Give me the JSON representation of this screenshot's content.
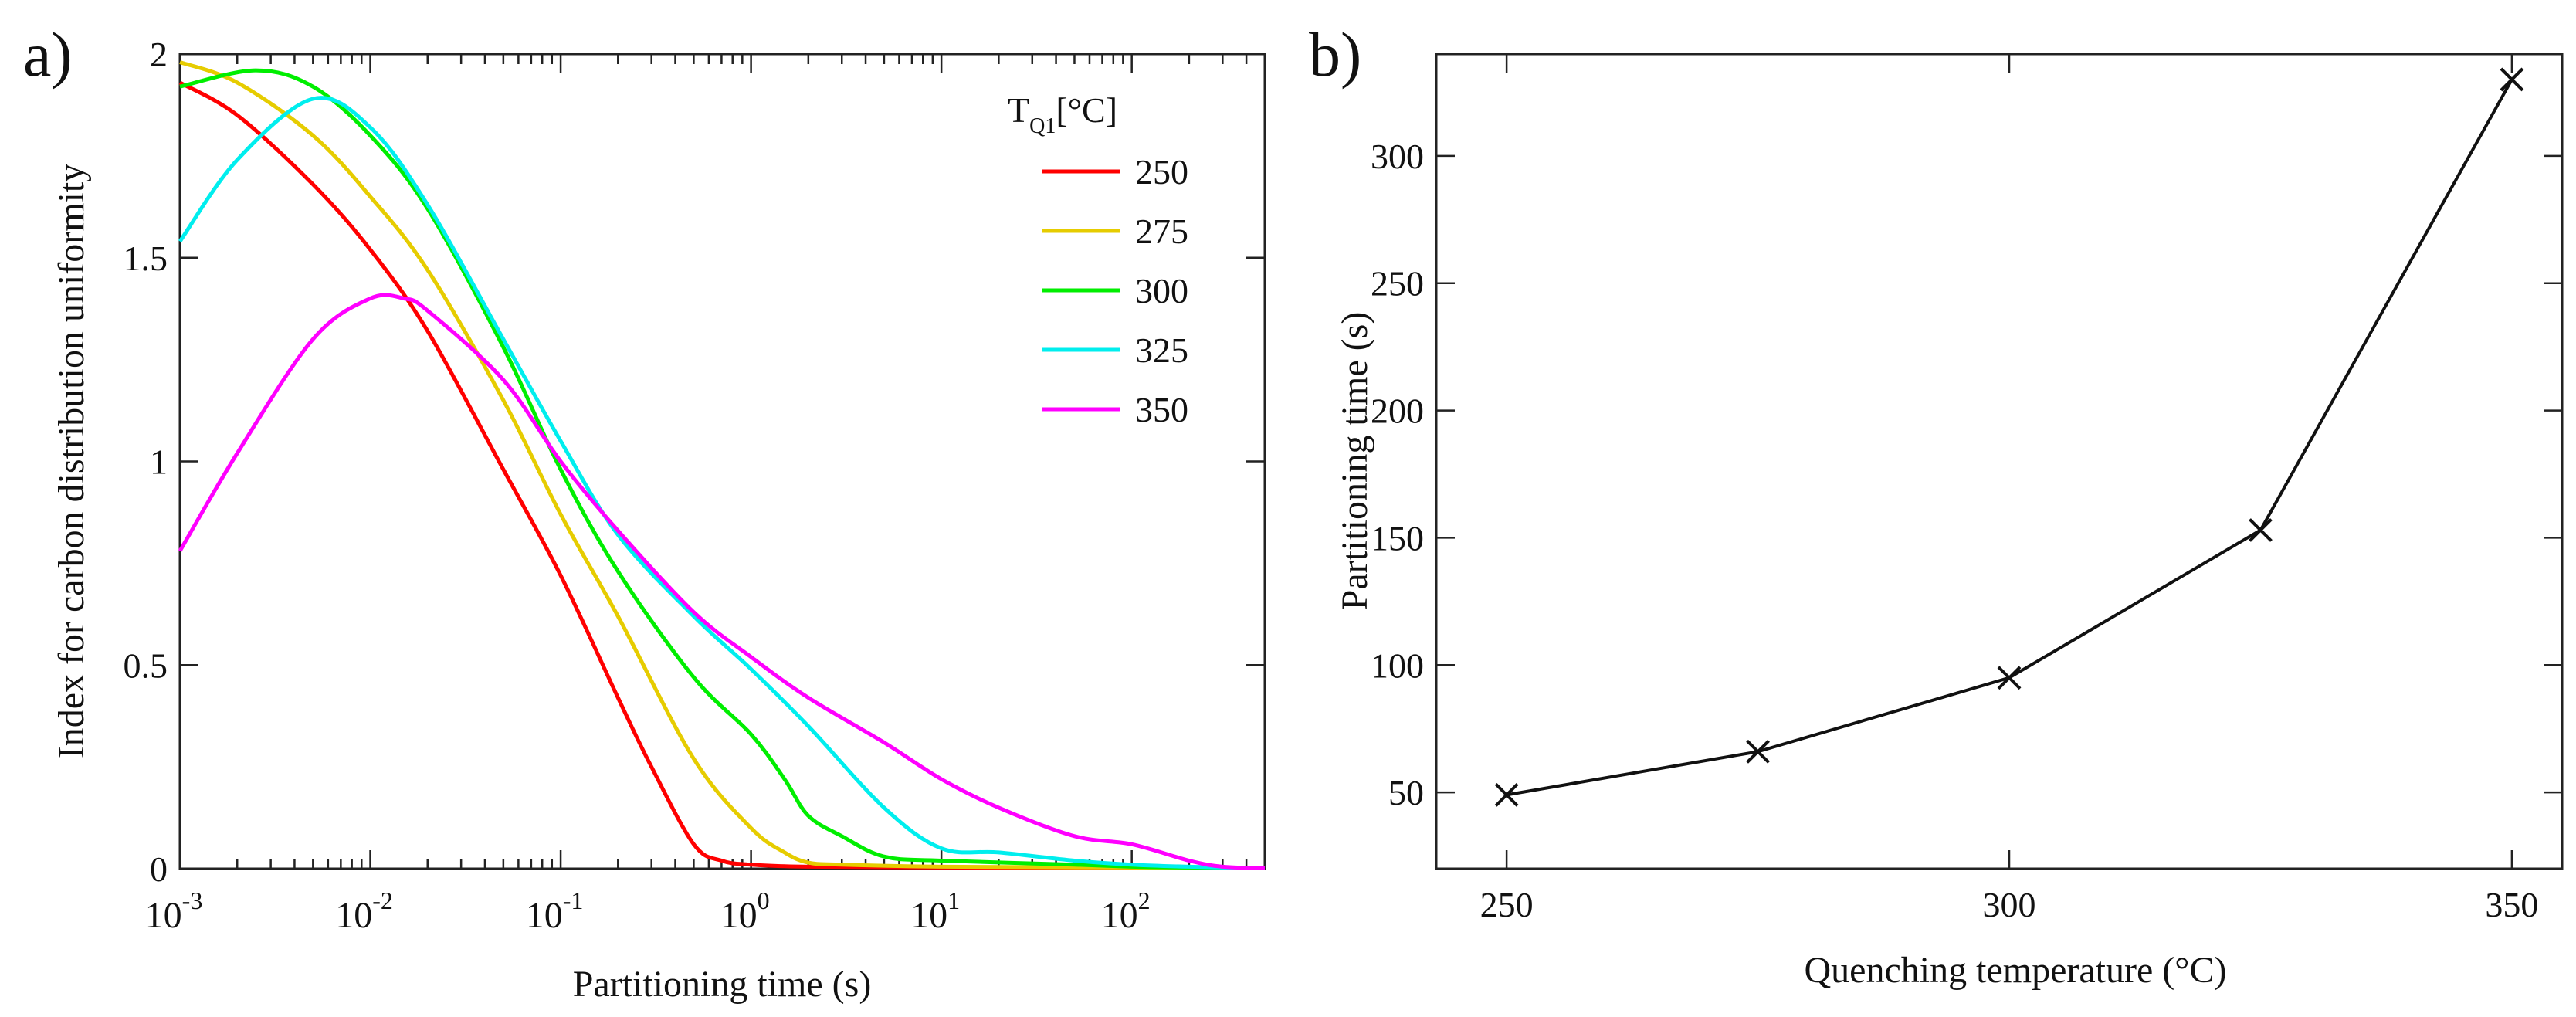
{
  "chart_data": [
    {
      "panel_label": "a)",
      "type": "line",
      "title": "",
      "xlabel": "Partitioning time (s)",
      "ylabel": "Index for carbon distribution uniformity",
      "xscale": "log",
      "xlim": [
        0.001,
        500
      ],
      "ylim": [
        0,
        2
      ],
      "xticks": [
        {
          "value": 0.001,
          "base": "10",
          "exp": "-3"
        },
        {
          "value": 0.01,
          "base": "10",
          "exp": "-2"
        },
        {
          "value": 0.1,
          "base": "10",
          "exp": "-1"
        },
        {
          "value": 1,
          "base": "10",
          "exp": "0"
        },
        {
          "value": 10,
          "base": "10",
          "exp": "1"
        },
        {
          "value": 100,
          "base": "10",
          "exp": "2"
        }
      ],
      "yticks": [
        {
          "value": 0,
          "label": "0"
        },
        {
          "value": 0.5,
          "label": "0.5"
        },
        {
          "value": 1,
          "label": "1"
        },
        {
          "value": 1.5,
          "label": "1.5"
        },
        {
          "value": 2,
          "label": "2"
        }
      ],
      "legend": {
        "title_main": "T",
        "title_sub": "Q1",
        "title_unit": "[°C]",
        "position": "top-right"
      },
      "series": [
        {
          "name": "250",
          "color": "#ff0000",
          "x": [
            0.001,
            0.002,
            0.005,
            0.01,
            0.02,
            0.05,
            0.1,
            0.2,
            0.3,
            0.5,
            0.7,
            1,
            2,
            10,
            100,
            500
          ],
          "y": [
            1.93,
            1.85,
            1.68,
            1.52,
            1.32,
            0.98,
            0.72,
            0.42,
            0.25,
            0.06,
            0.02,
            0.01,
            0.005,
            0.003,
            0.002,
            0.001
          ]
        },
        {
          "name": "275",
          "color": "#e6cc00",
          "x": [
            0.001,
            0.002,
            0.005,
            0.01,
            0.02,
            0.05,
            0.1,
            0.2,
            0.5,
            1,
            1.5,
            2,
            3,
            10,
            100,
            500
          ],
          "y": [
            1.98,
            1.93,
            1.8,
            1.65,
            1.47,
            1.15,
            0.87,
            0.62,
            0.27,
            0.1,
            0.04,
            0.015,
            0.01,
            0.005,
            0.003,
            0.001
          ]
        },
        {
          "name": "300",
          "color": "#00ee00",
          "x": [
            0.001,
            0.0025,
            0.005,
            0.01,
            0.02,
            0.05,
            0.1,
            0.2,
            0.5,
            1,
            1.5,
            2,
            3,
            5,
            10,
            50,
            100,
            200,
            500
          ],
          "y": [
            1.92,
            1.96,
            1.92,
            1.8,
            1.62,
            1.28,
            0.98,
            0.73,
            0.47,
            0.33,
            0.22,
            0.13,
            0.08,
            0.03,
            0.02,
            0.01,
            0.005,
            0.003,
            0.001
          ]
        },
        {
          "name": "325",
          "color": "#00eeee",
          "x": [
            0.001,
            0.002,
            0.005,
            0.01,
            0.02,
            0.05,
            0.1,
            0.2,
            0.5,
            1,
            2,
            5,
            10,
            20,
            50,
            100,
            200,
            500
          ],
          "y": [
            1.54,
            1.74,
            1.89,
            1.82,
            1.63,
            1.3,
            1.05,
            0.82,
            0.62,
            0.49,
            0.35,
            0.15,
            0.05,
            0.04,
            0.02,
            0.01,
            0.005,
            0.001
          ]
        },
        {
          "name": "350",
          "color": "#ff00ff",
          "x": [
            0.001,
            0.002,
            0.005,
            0.01,
            0.015,
            0.02,
            0.05,
            0.1,
            0.2,
            0.5,
            1,
            2,
            5,
            10,
            20,
            50,
            100,
            200,
            300,
            500
          ],
          "y": [
            0.78,
            1.02,
            1.3,
            1.4,
            1.4,
            1.37,
            1.2,
            1.0,
            0.83,
            0.63,
            0.52,
            0.42,
            0.31,
            0.22,
            0.15,
            0.08,
            0.06,
            0.02,
            0.005,
            0.001
          ]
        }
      ]
    },
    {
      "panel_label": "b)",
      "type": "line",
      "title": "",
      "xlabel": "Quenching temperature (°C)",
      "ylabel": "Partitioning time (s)",
      "xscale": "linear",
      "xlim": [
        243,
        355
      ],
      "ylim": [
        20,
        340
      ],
      "xticks": [
        {
          "value": 250,
          "label": "250"
        },
        {
          "value": 300,
          "label": "300"
        },
        {
          "value": 350,
          "label": "350"
        }
      ],
      "yticks": [
        {
          "value": 50,
          "label": "50"
        },
        {
          "value": 100,
          "label": "100"
        },
        {
          "value": 150,
          "label": "150"
        },
        {
          "value": 200,
          "label": "200"
        },
        {
          "value": 250,
          "label": "250"
        },
        {
          "value": 300,
          "label": "300"
        }
      ],
      "marker": "x",
      "series": [
        {
          "name": "Partitioning time",
          "color": "#111111",
          "x": [
            250,
            275,
            300,
            325,
            350
          ],
          "y": [
            49,
            66,
            95,
            153,
            330
          ]
        }
      ]
    }
  ]
}
